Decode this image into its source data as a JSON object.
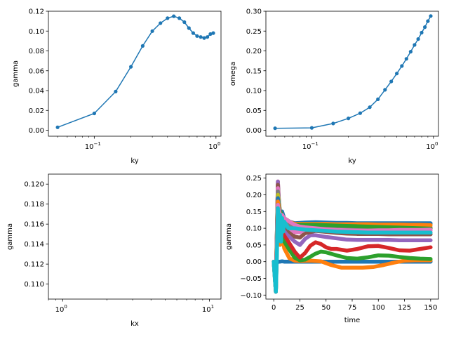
{
  "chart_data": [
    {
      "type": "line",
      "xscale": "log",
      "xlabel": "ky",
      "ylabel": "gamma",
      "xlim": [
        0.042,
        1.1
      ],
      "ylim": [
        -0.006,
        0.12
      ],
      "xticks": [
        {
          "v": 0.1,
          "b": "10",
          "e": "−1"
        },
        {
          "v": 1,
          "b": "10",
          "e": "0"
        }
      ],
      "yticks": [
        "0.00",
        "0.02",
        "0.04",
        "0.06",
        "0.08",
        "0.10",
        "0.12"
      ],
      "ytick_values": [
        0,
        0.02,
        0.04,
        0.06,
        0.08,
        0.1,
        0.12
      ],
      "color": "#1f77b4",
      "x": [
        0.05,
        0.1,
        0.15,
        0.2,
        0.25,
        0.3,
        0.35,
        0.4,
        0.45,
        0.5,
        0.55,
        0.6,
        0.65,
        0.7,
        0.75,
        0.8,
        0.85,
        0.9,
        0.95
      ],
      "y": [
        0.003,
        0.017,
        0.039,
        0.064,
        0.085,
        0.1,
        0.108,
        0.113,
        0.115,
        0.113,
        0.109,
        0.103,
        0.098,
        0.095,
        0.094,
        0.093,
        0.094,
        0.097,
        0.098
      ]
    },
    {
      "type": "line",
      "xscale": "log",
      "xlabel": "ky",
      "ylabel": "omega",
      "xlim": [
        0.042,
        1.1
      ],
      "ylim": [
        -0.015,
        0.3
      ],
      "xticks": [
        {
          "v": 0.1,
          "b": "10",
          "e": "−1"
        },
        {
          "v": 1,
          "b": "10",
          "e": "0"
        }
      ],
      "yticks": [
        "0.00",
        "0.05",
        "0.10",
        "0.15",
        "0.20",
        "0.25",
        "0.30"
      ],
      "ytick_values": [
        0,
        0.05,
        0.1,
        0.15,
        0.2,
        0.25,
        0.3
      ],
      "color": "#1f77b4",
      "x": [
        0.05,
        0.1,
        0.15,
        0.2,
        0.25,
        0.3,
        0.35,
        0.4,
        0.45,
        0.5,
        0.55,
        0.6,
        0.65,
        0.7,
        0.75,
        0.8,
        0.85,
        0.9,
        0.95
      ],
      "y": [
        0.005,
        0.006,
        0.017,
        0.03,
        0.043,
        0.058,
        0.078,
        0.102,
        0.123,
        0.143,
        0.162,
        0.18,
        0.198,
        0.215,
        0.23,
        0.246,
        0.26,
        0.275,
        0.288
      ]
    },
    {
      "type": "scatter",
      "xscale": "log",
      "xlabel": "kx",
      "ylabel": "gamma",
      "xlim": [
        0.8,
        12
      ],
      "ylim": [
        0.1085,
        0.121
      ],
      "xticks": [
        {
          "v": 1,
          "b": "10",
          "e": "0"
        },
        {
          "v": 10,
          "b": "10",
          "e": "1"
        }
      ],
      "yticks": [
        "0.110",
        "0.112",
        "0.114",
        "0.116",
        "0.118",
        "0.120"
      ],
      "ytick_values": [
        0.11,
        0.112,
        0.114,
        0.116,
        0.118,
        0.12
      ],
      "x": [],
      "y": []
    },
    {
      "type": "line",
      "xscale": "linear",
      "xlabel": "time",
      "ylabel": "gamma",
      "xlim": [
        -7.5,
        157.5
      ],
      "ylim": [
        -0.112,
        0.262
      ],
      "xtick_values": [
        0,
        25,
        50,
        75,
        100,
        125,
        150
      ],
      "xtick_labels": [
        "0",
        "25",
        "50",
        "75",
        "100",
        "125",
        "150"
      ],
      "yticks": [
        "−0.10",
        "−0.05",
        "0.00",
        "0.05",
        "0.10",
        "0.15",
        "0.20",
        "0.25"
      ],
      "ytick_values": [
        -0.1,
        -0.05,
        0,
        0.05,
        0.1,
        0.15,
        0.2,
        0.25
      ],
      "series": [
        {
          "color": "#1f77b4",
          "x": [
            0,
            2,
            4,
            6,
            8,
            10,
            15,
            25,
            50,
            75,
            100,
            125,
            150
          ],
          "y": [
            0,
            -0.01,
            0.0,
            0.0,
            0.001,
            0.0,
            0.0,
            0.0,
            0.0,
            0.0,
            0.0,
            0.0,
            0.0
          ]
        },
        {
          "color": "#ff7f0e",
          "x": [
            0,
            2,
            4,
            6,
            8,
            10,
            15,
            20,
            25,
            35,
            45,
            55,
            65,
            75,
            85,
            95,
            105,
            115,
            125,
            135,
            150
          ],
          "y": [
            0,
            -0.05,
            0.2,
            0.05,
            0.08,
            0.04,
            0.01,
            0.003,
            0.002,
            0.003,
            0.001,
            -0.01,
            -0.018,
            -0.018,
            -0.018,
            -0.016,
            -0.01,
            -0.003,
            0.003,
            0.004,
            0.004
          ]
        },
        {
          "color": "#2ca02c",
          "x": [
            0,
            2,
            4,
            6,
            8,
            10,
            15,
            20,
            25,
            30,
            35,
            40,
            45,
            50,
            60,
            70,
            80,
            90,
            100,
            110,
            120,
            130,
            140,
            150
          ],
          "y": [
            0,
            -0.06,
            0.23,
            0.08,
            0.11,
            0.06,
            0.035,
            0.012,
            0.004,
            0.006,
            0.015,
            0.024,
            0.03,
            0.028,
            0.019,
            0.011,
            0.009,
            0.013,
            0.019,
            0.018,
            0.014,
            0.011,
            0.009,
            0.008
          ]
        },
        {
          "color": "#d62728",
          "x": [
            0,
            2,
            4,
            6,
            8,
            10,
            15,
            20,
            25,
            30,
            35,
            40,
            45,
            50,
            55,
            60,
            70,
            80,
            90,
            100,
            110,
            120,
            130,
            140,
            150
          ],
          "y": [
            0,
            -0.07,
            0.24,
            0.1,
            0.12,
            0.08,
            0.055,
            0.03,
            0.012,
            0.026,
            0.048,
            0.058,
            0.053,
            0.043,
            0.038,
            0.038,
            0.033,
            0.038,
            0.046,
            0.047,
            0.041,
            0.034,
            0.033,
            0.038,
            0.043
          ]
        },
        {
          "color": "#9467bd",
          "x": [
            0,
            2,
            4,
            6,
            8,
            10,
            15,
            20,
            25,
            30,
            35,
            40,
            50,
            60,
            70,
            80,
            90,
            100,
            110,
            120,
            130,
            140,
            150
          ],
          "y": [
            0,
            -0.08,
            0.24,
            0.12,
            0.13,
            0.1,
            0.075,
            0.06,
            0.05,
            0.068,
            0.079,
            0.079,
            0.074,
            0.07,
            0.066,
            0.065,
            0.065,
            0.065,
            0.065,
            0.064,
            0.064,
            0.064,
            0.064
          ]
        },
        {
          "color": "#8c564b",
          "x": [
            0,
            2,
            4,
            6,
            8,
            10,
            15,
            20,
            25,
            30,
            40,
            50,
            60,
            70,
            80,
            90,
            100,
            110,
            120,
            130,
            140,
            150
          ],
          "y": [
            0,
            -0.08,
            0.23,
            0.13,
            0.14,
            0.11,
            0.09,
            0.075,
            0.072,
            0.085,
            0.092,
            0.089,
            0.086,
            0.084,
            0.083,
            0.083,
            0.083,
            0.082,
            0.082,
            0.082,
            0.082,
            0.082
          ]
        },
        {
          "color": "#e377c2",
          "x": [
            0,
            2,
            4,
            6,
            8,
            10,
            15,
            20,
            25,
            30,
            40,
            50,
            60,
            70,
            80,
            90,
            100,
            110,
            120,
            130,
            140,
            150
          ],
          "y": [
            0,
            -0.09,
            0.22,
            0.14,
            0.14,
            0.12,
            0.1,
            0.088,
            0.088,
            0.096,
            0.1,
            0.098,
            0.096,
            0.095,
            0.094,
            0.094,
            0.093,
            0.093,
            0.093,
            0.093,
            0.093,
            0.093
          ]
        },
        {
          "color": "#7f7f7f",
          "x": [
            0,
            2,
            4,
            6,
            8,
            10,
            15,
            20,
            25,
            30,
            40,
            50,
            60,
            70,
            80,
            90,
            100,
            110,
            120,
            130,
            140,
            150
          ],
          "y": [
            0,
            -0.09,
            0.21,
            0.15,
            0.14,
            0.13,
            0.11,
            0.1,
            0.1,
            0.104,
            0.107,
            0.106,
            0.105,
            0.104,
            0.104,
            0.104,
            0.103,
            0.103,
            0.103,
            0.103,
            0.103,
            0.103
          ]
        },
        {
          "color": "#bcbd22",
          "x": [
            0,
            2,
            4,
            6,
            8,
            10,
            15,
            20,
            25,
            30,
            40,
            50,
            60,
            70,
            80,
            90,
            100,
            110,
            120,
            130,
            140,
            150
          ],
          "y": [
            0,
            -0.09,
            0.2,
            0.15,
            0.14,
            0.13,
            0.12,
            0.11,
            0.11,
            0.112,
            0.113,
            0.112,
            0.112,
            0.111,
            0.111,
            0.111,
            0.111,
            0.111,
            0.111,
            0.111,
            0.111,
            0.111
          ]
        },
        {
          "color": "#1f77b4",
          "x": [
            0,
            2,
            4,
            6,
            8,
            10,
            15,
            20,
            25,
            30,
            40,
            50,
            60,
            70,
            80,
            90,
            100,
            110,
            120,
            130,
            140,
            150
          ],
          "y": [
            0,
            -0.09,
            0.19,
            0.15,
            0.15,
            0.13,
            0.12,
            0.115,
            0.116,
            0.117,
            0.118,
            0.117,
            0.116,
            0.116,
            0.115,
            0.115,
            0.115,
            0.115,
            0.115,
            0.115,
            0.115,
            0.115
          ]
        },
        {
          "color": "#ff7f0e",
          "x": [
            0,
            2,
            4,
            6,
            8,
            10,
            15,
            20,
            25,
            30,
            40,
            50,
            60,
            70,
            80,
            90,
            100,
            110,
            120,
            130,
            140,
            150
          ],
          "y": [
            0,
            -0.09,
            0.18,
            0.15,
            0.14,
            0.13,
            0.12,
            0.113,
            0.113,
            0.113,
            0.113,
            0.113,
            0.112,
            0.112,
            0.112,
            0.112,
            0.111,
            0.111,
            0.111,
            0.11,
            0.11,
            0.109
          ]
        },
        {
          "color": "#2ca02c",
          "x": [
            0,
            2,
            4,
            6,
            8,
            10,
            15,
            20,
            25,
            30,
            40,
            50,
            60,
            70,
            80,
            90,
            100,
            110,
            120,
            130,
            140,
            150
          ],
          "y": [
            0,
            -0.09,
            0.17,
            0.15,
            0.14,
            0.13,
            0.12,
            0.11,
            0.11,
            0.11,
            0.11,
            0.109,
            0.108,
            0.107,
            0.106,
            0.105,
            0.104,
            0.103,
            0.102,
            0.101,
            0.1,
            0.099
          ]
        },
        {
          "color": "#e377c2",
          "x": [
            0,
            2,
            4,
            6,
            8,
            10,
            15,
            20,
            25,
            30,
            40,
            50,
            60,
            70,
            80,
            90,
            100,
            110,
            120,
            130,
            140,
            150
          ],
          "y": [
            0,
            -0.09,
            0.17,
            0.14,
            0.14,
            0.13,
            0.12,
            0.11,
            0.105,
            0.103,
            0.1,
            0.097,
            0.095,
            0.094,
            0.093,
            0.093,
            0.094,
            0.094,
            0.095,
            0.095,
            0.095,
            0.096
          ]
        },
        {
          "color": "#17becf",
          "x": [
            0,
            1,
            2,
            3,
            4,
            5,
            6,
            7,
            8,
            9,
            10,
            12,
            14,
            17,
            20,
            25,
            30,
            40,
            50,
            60,
            70,
            80,
            90,
            100,
            110,
            120,
            130,
            140,
            150
          ],
          "y": [
            0,
            -0.05,
            -0.09,
            0.02,
            0.16,
            0.1,
            0.14,
            0.06,
            0.13,
            0.09,
            0.12,
            0.11,
            0.1,
            0.1,
            0.1,
            0.098,
            0.096,
            0.094,
            0.092,
            0.09,
            0.089,
            0.088,
            0.087,
            0.087,
            0.087,
            0.087,
            0.087,
            0.087,
            0.087
          ]
        }
      ]
    }
  ]
}
